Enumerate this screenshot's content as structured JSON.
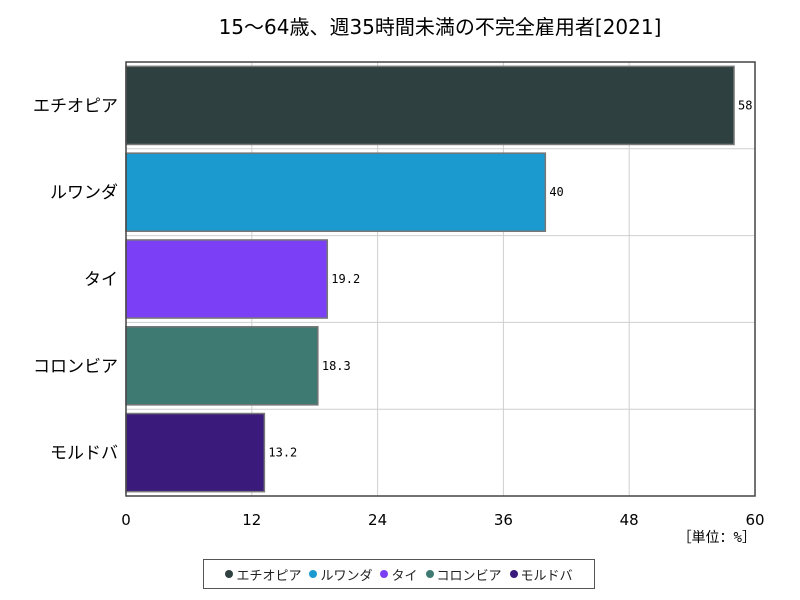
{
  "chart_data": {
    "type": "bar",
    "orientation": "horizontal",
    "title": "15～64歳、週35時間未満の不完全雇用者[2021]",
    "categories": [
      "エチオピア",
      "ルワンダ",
      "タイ",
      "コロンビア",
      "モルドバ"
    ],
    "values": [
      58,
      40,
      19.2,
      18.3,
      13.2
    ],
    "value_labels": [
      "58",
      "40",
      "19.2",
      "18.3",
      "13.2"
    ],
    "colors": [
      "#2f4040",
      "#1b9ad0",
      "#7b3ff5",
      "#3e7a72",
      "#3a1a7a"
    ],
    "xlim": [
      0,
      60
    ],
    "xticks": [
      0,
      12,
      24,
      36,
      48,
      60
    ],
    "xtick_labels": [
      "0",
      "12",
      "24",
      "36",
      "48",
      "60"
    ],
    "unit_label": "［単位：%］",
    "grid": true,
    "legend_position": "bottom"
  }
}
